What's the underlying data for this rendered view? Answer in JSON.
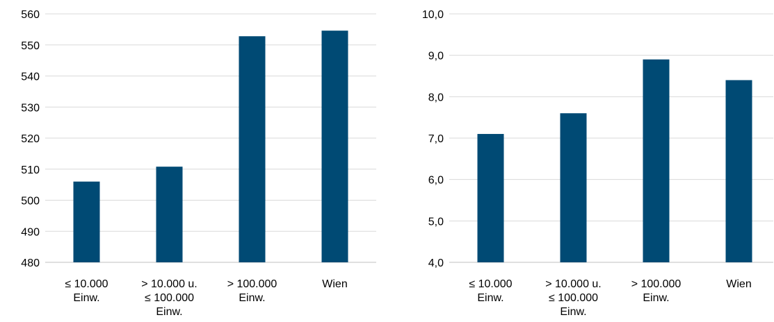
{
  "colors": {
    "bar": "#004a74",
    "grid": "#d9d9d9",
    "axis": "#bfbfbf",
    "text": "#000000"
  },
  "chart_data": [
    {
      "type": "bar",
      "title": "",
      "xlabel": "",
      "ylabel": "",
      "categories": [
        [
          "≤ 10.000",
          "Einw."
        ],
        [
          "> 10.000 u.",
          "≤ 100.000",
          "Einw."
        ],
        [
          "> 100.000",
          "Einw."
        ],
        [
          "Wien"
        ]
      ],
      "values": [
        506,
        510.8,
        552.8,
        554.6
      ],
      "ylim": [
        480,
        560
      ],
      "yticks": [
        480,
        490,
        500,
        510,
        520,
        530,
        540,
        550,
        560
      ],
      "ytick_labels": [
        "480",
        "490",
        "500",
        "510",
        "520",
        "530",
        "540",
        "550",
        "560"
      ],
      "grid": true,
      "legend": "none"
    },
    {
      "type": "bar",
      "title": "",
      "xlabel": "",
      "ylabel": "",
      "categories": [
        [
          "≤ 10.000",
          "Einw."
        ],
        [
          "> 10.000 u.",
          "≤ 100.000",
          "Einw."
        ],
        [
          "> 100.000",
          "Einw."
        ],
        [
          "Wien"
        ]
      ],
      "values": [
        7.1,
        7.6,
        8.9,
        8.4
      ],
      "ylim": [
        4.0,
        10.0
      ],
      "yticks": [
        4,
        5,
        6,
        7,
        8,
        9,
        10
      ],
      "ytick_labels": [
        "4,0",
        "5,0",
        "6,0",
        "7,0",
        "8,0",
        "9,0",
        "10,0"
      ],
      "grid": true,
      "legend": "none"
    }
  ]
}
